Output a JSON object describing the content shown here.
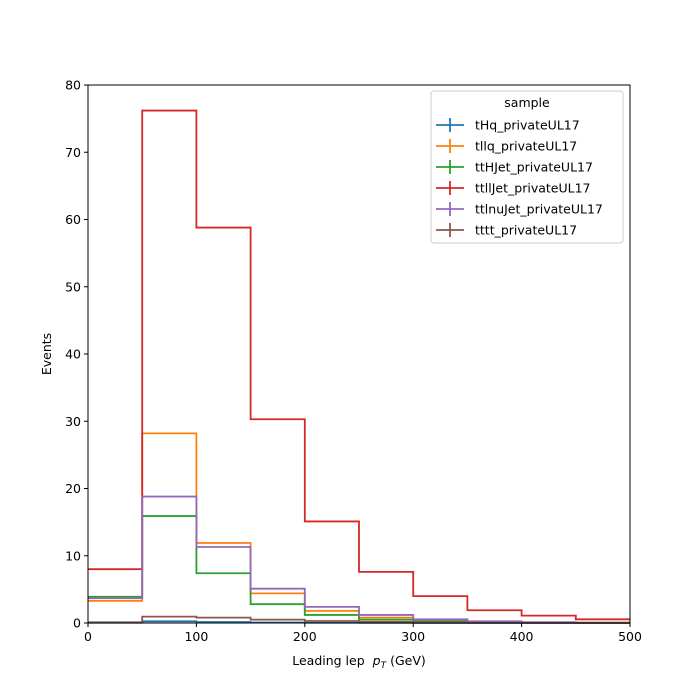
{
  "chart_data": {
    "type": "line",
    "title": "",
    "xlabel": "Leading lep",
    "xlabel_symbol": "p",
    "xlabel_subscript": "T",
    "xlabel_unit": "(GeV)",
    "ylabel": "Events",
    "xlim": [
      0,
      500
    ],
    "ylim": [
      0,
      80
    ],
    "x_ticks": [
      0,
      100,
      200,
      300,
      400,
      500
    ],
    "y_ticks": [
      0,
      10,
      20,
      30,
      40,
      50,
      60,
      70,
      80
    ],
    "bin_edges": [
      0,
      50,
      100,
      150,
      200,
      250,
      300,
      350,
      400,
      450,
      500
    ],
    "grid": false,
    "legend": {
      "title": "sample",
      "placement": "top-right"
    },
    "series": [
      {
        "name": "tHq_privateUL17",
        "color": "#1f77b4",
        "values": [
          0.1,
          0.25,
          0.15,
          0.07,
          0.04,
          0.02,
          0.01,
          0.01,
          0.0,
          0.0
        ]
      },
      {
        "name": "tllq_privateUL17",
        "color": "#ff7f0e",
        "values": [
          3.3,
          28.2,
          11.9,
          4.4,
          1.8,
          0.8,
          0.35,
          0.15,
          0.08,
          0.04
        ]
      },
      {
        "name": "ttHJet_privateUL17",
        "color": "#2ca02c",
        "values": [
          3.9,
          15.9,
          7.4,
          2.8,
          1.2,
          0.5,
          0.25,
          0.1,
          0.05,
          0.03
        ]
      },
      {
        "name": "ttllJet_privateUL17",
        "color": "#d62728",
        "values": [
          8.0,
          76.2,
          58.8,
          30.3,
          15.1,
          7.6,
          4.0,
          1.9,
          1.1,
          0.55
        ]
      },
      {
        "name": "ttlnuJet_privateUL17",
        "color": "#9467bd",
        "values": [
          3.7,
          18.8,
          11.3,
          5.1,
          2.4,
          1.2,
          0.55,
          0.25,
          0.12,
          0.06
        ]
      },
      {
        "name": "tttt_privateUL17",
        "color": "#8c564b",
        "values": [
          0.05,
          0.95,
          0.8,
          0.5,
          0.3,
          0.18,
          0.1,
          0.05,
          0.02,
          0.01
        ]
      }
    ]
  }
}
